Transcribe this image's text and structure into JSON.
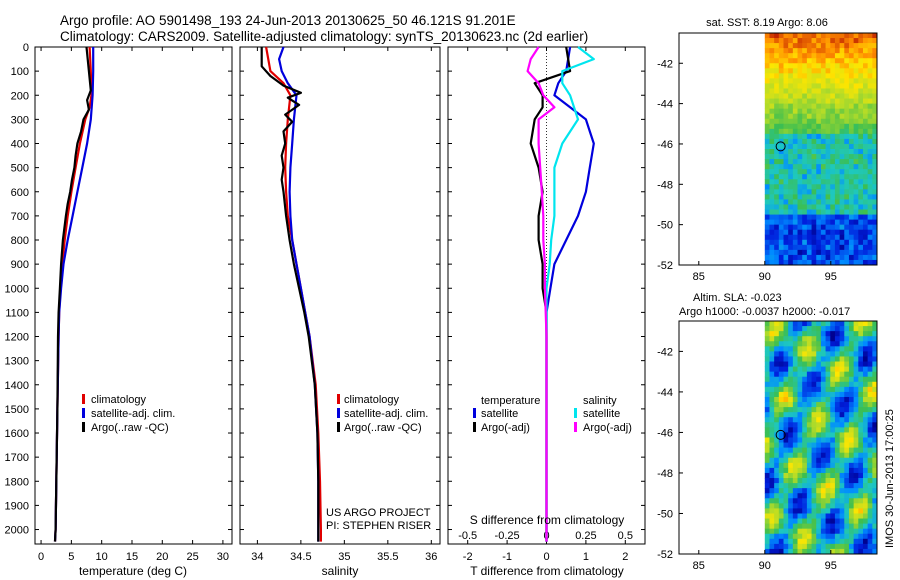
{
  "header": {
    "line1": "Argo profile: AO 5901498_193 24-Jun-2013 20130625_50 46.121S 91.201E",
    "line2": "Climatology: CARS2009. Satellite-adjusted climatology: synTS_20130623.nc (2d earlier)"
  },
  "colors": {
    "climatology": "#e00000",
    "satellite": "#0000dd",
    "argo": "#000000",
    "sal_satellite": "#00e5ee",
    "sal_argo": "#ff00ff"
  },
  "depth_ticks": [
    0,
    100,
    200,
    300,
    400,
    500,
    600,
    700,
    800,
    900,
    1000,
    1100,
    1200,
    1300,
    1400,
    1500,
    1600,
    1700,
    1800,
    1900,
    2000
  ],
  "chart_data": [
    {
      "type": "line",
      "name": "temperature",
      "xlabel": "temperature (deg C)",
      "ylabel": "depth",
      "xlim": [
        -1,
        31.5
      ],
      "ylim": [
        2060,
        0
      ],
      "xticks": [
        "0",
        "5",
        "10",
        "15",
        "20",
        "25",
        "30"
      ],
      "xtick_values": [
        0,
        5,
        10,
        15,
        20,
        25,
        30
      ],
      "legend": [
        "climatology",
        "satellite-adj. clim.",
        "Argo(..raw -QC)"
      ],
      "series": [
        {
          "name": "climatology",
          "points": [
            [
              0,
              8.0
            ],
            [
              100,
              8.2
            ],
            [
              200,
              8.3
            ],
            [
              250,
              8.0
            ],
            [
              300,
              7.3
            ],
            [
              400,
              6.4
            ],
            [
              500,
              5.7
            ],
            [
              600,
              5.0
            ],
            [
              700,
              4.4
            ],
            [
              800,
              3.9
            ],
            [
              900,
              3.5
            ],
            [
              1000,
              3.2
            ],
            [
              1100,
              3.0
            ],
            [
              1200,
              2.9
            ],
            [
              1500,
              2.7
            ],
            [
              2000,
              2.4
            ],
            [
              2050,
              2.3
            ]
          ]
        },
        {
          "name": "satellite-adj. clim.",
          "points": [
            [
              0,
              8.6
            ],
            [
              100,
              8.6
            ],
            [
              200,
              8.5
            ],
            [
              300,
              8.2
            ],
            [
              400,
              7.6
            ],
            [
              500,
              6.8
            ],
            [
              600,
              6.0
            ],
            [
              700,
              5.2
            ],
            [
              800,
              4.4
            ],
            [
              900,
              3.7
            ],
            [
              1000,
              3.3
            ],
            [
              1100,
              3.0
            ],
            [
              1200,
              2.9
            ],
            [
              1500,
              2.7
            ],
            [
              2000,
              2.4
            ],
            [
              2050,
              2.3
            ]
          ]
        },
        {
          "name": "Argo(..raw -QC)",
          "points": [
            [
              0,
              7.5
            ],
            [
              100,
              7.9
            ],
            [
              180,
              8.2
            ],
            [
              220,
              7.6
            ],
            [
              260,
              7.9
            ],
            [
              300,
              7.0
            ],
            [
              350,
              6.6
            ],
            [
              400,
              6.0
            ],
            [
              450,
              5.7
            ],
            [
              500,
              5.5
            ],
            [
              550,
              5.1
            ],
            [
              600,
              4.8
            ],
            [
              650,
              4.4
            ],
            [
              700,
              4.1
            ],
            [
              800,
              3.6
            ],
            [
              900,
              3.3
            ],
            [
              1000,
              3.1
            ],
            [
              1100,
              2.9
            ],
            [
              1200,
              2.8
            ],
            [
              1500,
              2.7
            ],
            [
              2000,
              2.4
            ],
            [
              2050,
              2.3
            ]
          ]
        }
      ]
    },
    {
      "type": "line",
      "name": "salinity",
      "xlabel": "salinity",
      "xlim": [
        33.8,
        36.1
      ],
      "ylim": [
        2060,
        0
      ],
      "xticks": [
        "34",
        "34.5",
        "35",
        "35.5",
        "36"
      ],
      "xtick_values": [
        34,
        34.5,
        35,
        35.5,
        36
      ],
      "legend": [
        "climatology",
        "satellite-adj. clim.",
        "Argo(..raw -QC)"
      ],
      "annotations": [
        "US ARGO PROJECT",
        "PI: STEPHEN RISER"
      ],
      "series": [
        {
          "name": "climatology",
          "points": [
            [
              0,
              34.1
            ],
            [
              100,
              34.15
            ],
            [
              150,
              34.3
            ],
            [
              200,
              34.38
            ],
            [
              300,
              34.35
            ],
            [
              400,
              34.33
            ],
            [
              500,
              34.32
            ],
            [
              600,
              34.33
            ],
            [
              700,
              34.35
            ],
            [
              800,
              34.4
            ],
            [
              900,
              34.45
            ],
            [
              1000,
              34.5
            ],
            [
              1100,
              34.55
            ],
            [
              1200,
              34.6
            ],
            [
              1400,
              34.67
            ],
            [
              1600,
              34.7
            ],
            [
              1800,
              34.72
            ],
            [
              2000,
              34.73
            ],
            [
              2050,
              34.73
            ]
          ]
        },
        {
          "name": "satellite-adj. clim.",
          "points": [
            [
              0,
              34.3
            ],
            [
              50,
              34.25
            ],
            [
              100,
              34.28
            ],
            [
              150,
              34.35
            ],
            [
              200,
              34.45
            ],
            [
              300,
              34.42
            ],
            [
              400,
              34.4
            ],
            [
              500,
              34.38
            ],
            [
              600,
              34.37
            ],
            [
              700,
              34.38
            ],
            [
              800,
              34.4
            ],
            [
              900,
              34.45
            ],
            [
              1000,
              34.5
            ],
            [
              1100,
              34.55
            ],
            [
              1200,
              34.6
            ],
            [
              1400,
              34.66
            ],
            [
              1600,
              34.69
            ],
            [
              1800,
              34.7
            ],
            [
              2000,
              34.7
            ],
            [
              2050,
              34.7
            ]
          ]
        },
        {
          "name": "Argo(..raw -QC)",
          "points": [
            [
              0,
              34.05
            ],
            [
              80,
              34.05
            ],
            [
              120,
              34.15
            ],
            [
              160,
              34.3
            ],
            [
              190,
              34.5
            ],
            [
              210,
              34.35
            ],
            [
              240,
              34.48
            ],
            [
              280,
              34.32
            ],
            [
              310,
              34.4
            ],
            [
              350,
              34.3
            ],
            [
              400,
              34.32
            ],
            [
              450,
              34.28
            ],
            [
              500,
              34.3
            ],
            [
              550,
              34.28
            ],
            [
              600,
              34.3
            ],
            [
              700,
              34.33
            ],
            [
              800,
              34.37
            ],
            [
              900,
              34.42
            ],
            [
              1000,
              34.48
            ],
            [
              1100,
              34.54
            ],
            [
              1200,
              34.59
            ],
            [
              1400,
              34.66
            ],
            [
              1600,
              34.69
            ],
            [
              1800,
              34.7
            ],
            [
              2000,
              34.7
            ],
            [
              2050,
              34.7
            ]
          ]
        }
      ]
    },
    {
      "type": "line",
      "name": "difference from climatology",
      "xlabel": "T difference from climatology",
      "xlabel_top": "S difference from climatology",
      "xlim": [
        -2.5,
        2.5
      ],
      "ylim": [
        2060,
        0
      ],
      "xticks": [
        "-2",
        "-1",
        "0",
        "1",
        "2"
      ],
      "xtick_values": [
        -2,
        -1,
        0,
        1,
        2
      ],
      "top_ticks": [
        "-0.5",
        "-0.25",
        "0",
        "0.25",
        "0.5"
      ],
      "top_tick_values": [
        -0.5,
        -0.25,
        0,
        0.25,
        0.5
      ],
      "s_scale": 4,
      "legend_left_title": "temperature",
      "legend_right_title": "salinity",
      "legend": [
        "satellite",
        "Argo(-adj)",
        "satellite",
        "Argo(-adj)"
      ],
      "series": [
        {
          "name": "temperature satellite",
          "points": [
            [
              0,
              0.6
            ],
            [
              100,
              0.5
            ],
            [
              150,
              0.3
            ],
            [
              200,
              0.2
            ],
            [
              250,
              0.6
            ],
            [
              300,
              1.0
            ],
            [
              350,
              1.1
            ],
            [
              400,
              1.2
            ],
            [
              500,
              1.1
            ],
            [
              600,
              1.0
            ],
            [
              700,
              0.8
            ],
            [
              800,
              0.5
            ],
            [
              900,
              0.2
            ],
            [
              1000,
              0.1
            ],
            [
              1100,
              0
            ],
            [
              1500,
              0
            ],
            [
              2050,
              0
            ]
          ]
        },
        {
          "name": "temperature Argo(-adj)",
          "points": [
            [
              0,
              0.5
            ],
            [
              100,
              0.6
            ],
            [
              150,
              -0.3
            ],
            [
              200,
              -0.1
            ],
            [
              250,
              -0.1
            ],
            [
              300,
              -0.3
            ],
            [
              400,
              -0.4
            ],
            [
              500,
              -0.2
            ],
            [
              600,
              -0.1
            ],
            [
              700,
              -0.2
            ],
            [
              800,
              -0.2
            ],
            [
              900,
              -0.1
            ],
            [
              1000,
              -0.1
            ],
            [
              1100,
              0
            ],
            [
              1500,
              0
            ],
            [
              2050,
              0
            ]
          ]
        },
        {
          "name": "salinity satellite",
          "points": [
            [
              0,
              0.2
            ],
            [
              50,
              0.3
            ],
            [
              100,
              0.1
            ],
            [
              150,
              0.1
            ],
            [
              200,
              0.15
            ],
            [
              300,
              0.2
            ],
            [
              400,
              0.1
            ],
            [
              500,
              0.05
            ],
            [
              600,
              0.05
            ],
            [
              700,
              0.05
            ],
            [
              800,
              0.03
            ],
            [
              900,
              0.02
            ],
            [
              1000,
              0
            ],
            [
              1200,
              0
            ],
            [
              2050,
              0
            ]
          ]
        },
        {
          "name": "salinity Argo(-adj)",
          "points": [
            [
              0,
              -0.05
            ],
            [
              50,
              -0.1
            ],
            [
              100,
              -0.12
            ],
            [
              150,
              -0.05
            ],
            [
              200,
              -0.02
            ],
            [
              250,
              0.05
            ],
            [
              300,
              -0.05
            ],
            [
              400,
              -0.05
            ],
            [
              500,
              -0.04
            ],
            [
              600,
              -0.03
            ],
            [
              700,
              -0.02
            ],
            [
              800,
              -0.02
            ],
            [
              900,
              -0.01
            ],
            [
              1000,
              -0.01
            ],
            [
              1200,
              0
            ],
            [
              2050,
              0
            ]
          ]
        }
      ]
    },
    {
      "type": "heatmap",
      "name": "SST map",
      "title": "sat. SST: 8.19 Argo: 8.06",
      "xticks": [
        "85",
        "90",
        "95"
      ],
      "xtick_values": [
        85,
        90,
        95
      ],
      "yticks": [
        "-42",
        "-44",
        "-46",
        "-48",
        "-50",
        "-52"
      ],
      "ytick_values": [
        -42,
        -44,
        -46,
        -48,
        -50,
        -52
      ],
      "xlim": [
        83.5,
        98.5
      ],
      "ylim": [
        -52,
        -40.5
      ],
      "marker": [
        91.2,
        -46.12
      ]
    },
    {
      "type": "heatmap",
      "name": "SLA map",
      "title_line1": "Altim. SLA: -0.023",
      "title_line2": "Argo h1000: -0.0037 h2000: -0.017",
      "xticks": [
        "85",
        "90",
        "95"
      ],
      "xtick_values": [
        85,
        90,
        95
      ],
      "yticks": [
        "-42",
        "-44",
        "-46",
        "-48",
        "-50",
        "-52"
      ],
      "ytick_values": [
        -42,
        -44,
        -46,
        -48,
        -50,
        -52
      ],
      "xlim": [
        83.5,
        98.5
      ],
      "ylim": [
        -52,
        -40.5
      ],
      "marker": [
        91.2,
        -46.12
      ]
    }
  ],
  "side_stamp": "IMOS 30-Jun-2013 17:00:25"
}
